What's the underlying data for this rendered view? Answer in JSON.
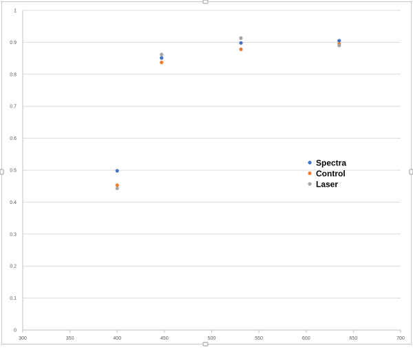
{
  "chart_data": {
    "type": "scatter",
    "title": "",
    "xlabel": "",
    "ylabel": "",
    "xlim": [
      300,
      700
    ],
    "ylim": [
      0,
      1
    ],
    "x_ticks": [
      "300",
      "350",
      "400",
      "450",
      "500",
      "550",
      "600",
      "650",
      "700"
    ],
    "y_ticks": [
      "0",
      "0.1",
      "0.2",
      "0.3",
      "0.4",
      "0.5",
      "0.6",
      "0.7",
      "0.8",
      "0.9",
      "1"
    ],
    "grid": "horizontal",
    "legend_position": "right-inside",
    "series": [
      {
        "name": "Spectra",
        "color": "#4472C4",
        "points": [
          [
            400,
            0.498
          ],
          [
            447,
            0.851
          ],
          [
            531,
            0.898
          ],
          [
            635,
            0.905
          ]
        ]
      },
      {
        "name": "Control",
        "color": "#ED7D31",
        "points": [
          [
            400,
            0.453
          ],
          [
            447,
            0.837
          ],
          [
            531,
            0.878
          ],
          [
            635,
            0.895
          ]
        ]
      },
      {
        "name": "Laser",
        "color": "#A5A5A5",
        "points": [
          [
            400,
            0.443
          ],
          [
            447,
            0.862
          ],
          [
            531,
            0.913
          ],
          [
            635,
            0.89
          ]
        ]
      }
    ]
  }
}
